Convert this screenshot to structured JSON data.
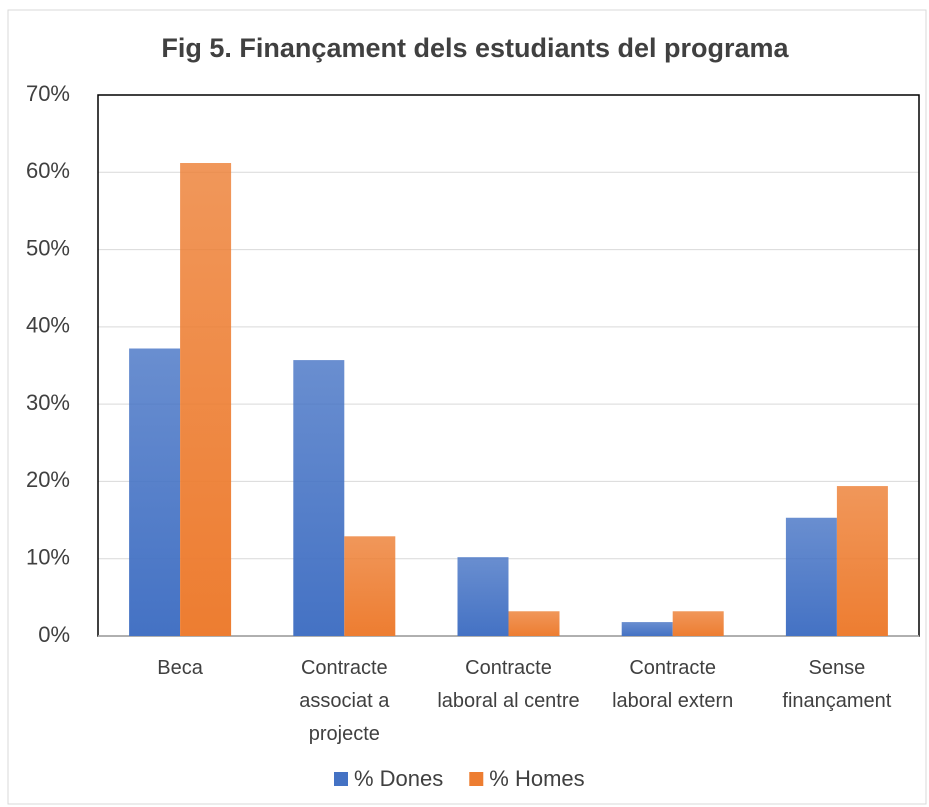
{
  "chart_data": {
    "type": "bar",
    "title": "Fig 5. Finançament dels estudiants del programa",
    "categories": [
      "Beca",
      "Contracte associat a projecte",
      "Contracte laboral al centre",
      "Contracte laboral extern",
      "Sense finançament"
    ],
    "series": [
      {
        "name": "% Dones",
        "color": "#4472c4",
        "values": [
          37.2,
          35.7,
          10.2,
          1.8,
          15.3
        ]
      },
      {
        "name": "% Homes",
        "color": "#ed7d31",
        "values": [
          61.2,
          12.9,
          3.2,
          3.2,
          19.4
        ]
      }
    ],
    "ylim": [
      0,
      70
    ],
    "yticks": [
      {
        "value": 0,
        "label": "0%"
      },
      {
        "value": 10,
        "label": "10%"
      },
      {
        "value": 20,
        "label": "20%"
      },
      {
        "value": 30,
        "label": "30%"
      },
      {
        "value": 40,
        "label": "40%"
      },
      {
        "value": 50,
        "label": "50%"
      },
      {
        "value": 60,
        "label": "60%"
      },
      {
        "value": 70,
        "label": "70%"
      }
    ],
    "grid": true,
    "legend": "bottom"
  }
}
